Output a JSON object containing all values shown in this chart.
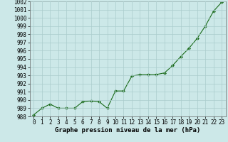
{
  "x": [
    0,
    1,
    2,
    3,
    4,
    5,
    6,
    7,
    8,
    9,
    10,
    11,
    12,
    13,
    14,
    15,
    16,
    17,
    18,
    19,
    20,
    21,
    22,
    23
  ],
  "y": [
    988.2,
    989.0,
    989.5,
    989.0,
    989.0,
    989.0,
    989.8,
    989.9,
    989.8,
    989.0,
    991.1,
    991.1,
    992.9,
    993.1,
    993.1,
    993.1,
    993.3,
    994.2,
    995.3,
    996.3,
    997.5,
    999.0,
    1000.8,
    1001.9
  ],
  "line_color": "#1a6b1a",
  "marker": "D",
  "marker_size": 2.0,
  "bg_color": "#cce8e8",
  "grid_color": "#aacccc",
  "xlabel": "Graphe pression niveau de la mer (hPa)",
  "ylim": [
    988,
    1002
  ],
  "xlim": [
    -0.5,
    23.5
  ],
  "yticks": [
    988,
    989,
    990,
    991,
    992,
    993,
    994,
    995,
    996,
    997,
    998,
    999,
    1000,
    1001,
    1002
  ],
  "xticks": [
    0,
    1,
    2,
    3,
    4,
    5,
    6,
    7,
    8,
    9,
    10,
    11,
    12,
    13,
    14,
    15,
    16,
    17,
    18,
    19,
    20,
    21,
    22,
    23
  ],
  "tick_fontsize": 5.5,
  "xlabel_fontsize": 6.5
}
